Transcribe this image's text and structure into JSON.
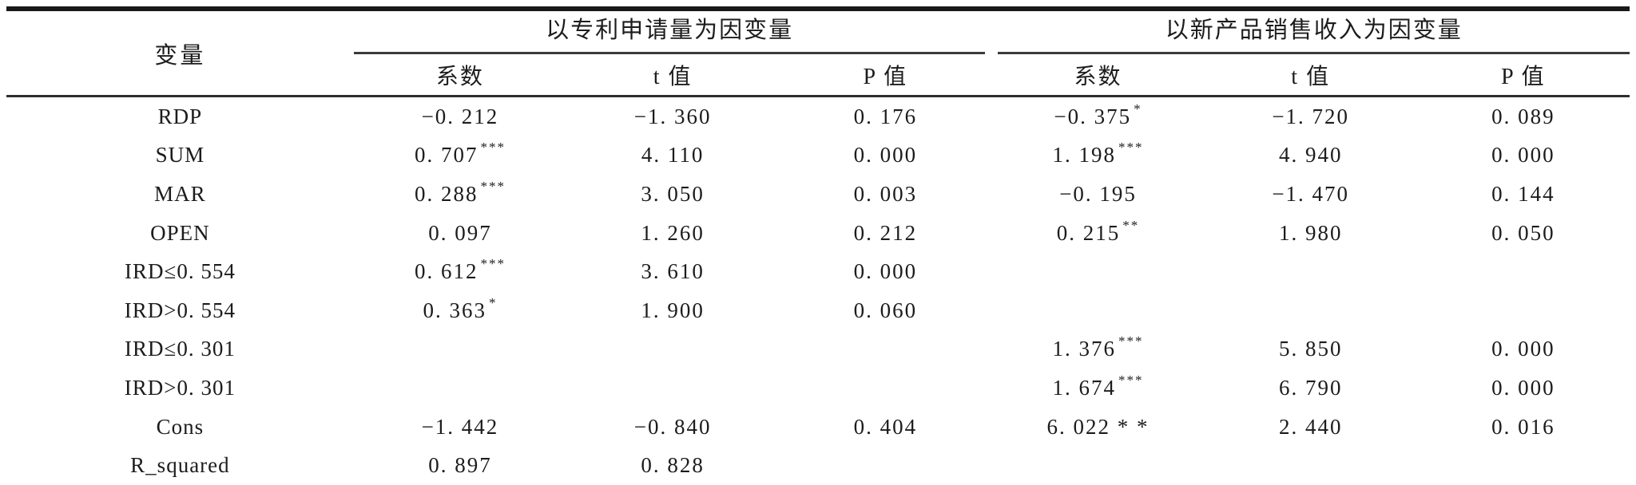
{
  "table": {
    "variable_header": "变量",
    "groups": [
      {
        "title": "以专利申请量为因变量",
        "columns": [
          "系数",
          "t 值",
          "P 值"
        ]
      },
      {
        "title": "以新产品销售收入为因变量",
        "columns": [
          "系数",
          "t 值",
          "P 值"
        ]
      }
    ],
    "rows": [
      {
        "variable": "RDP",
        "cells": [
          {
            "v": "−0. 212",
            "s": ""
          },
          {
            "v": "−1. 360",
            "s": ""
          },
          {
            "v": "0. 176",
            "s": ""
          },
          {
            "v": "−0. 375",
            "s": "*"
          },
          {
            "v": "−1. 720",
            "s": ""
          },
          {
            "v": "0. 089",
            "s": ""
          }
        ]
      },
      {
        "variable": "SUM",
        "cells": [
          {
            "v": "0. 707",
            "s": "***"
          },
          {
            "v": "4. 110",
            "s": ""
          },
          {
            "v": "0. 000",
            "s": ""
          },
          {
            "v": "1. 198",
            "s": "***"
          },
          {
            "v": "4. 940",
            "s": ""
          },
          {
            "v": "0. 000",
            "s": ""
          }
        ]
      },
      {
        "variable": "MAR",
        "cells": [
          {
            "v": "0. 288",
            "s": "***"
          },
          {
            "v": "3. 050",
            "s": ""
          },
          {
            "v": "0. 003",
            "s": ""
          },
          {
            "v": "−0. 195",
            "s": ""
          },
          {
            "v": "−1. 470",
            "s": ""
          },
          {
            "v": "0. 144",
            "s": ""
          }
        ]
      },
      {
        "variable": "OPEN",
        "cells": [
          {
            "v": "0. 097",
            "s": ""
          },
          {
            "v": "1. 260",
            "s": ""
          },
          {
            "v": "0. 212",
            "s": ""
          },
          {
            "v": "0. 215",
            "s": "**"
          },
          {
            "v": "1. 980",
            "s": ""
          },
          {
            "v": "0. 050",
            "s": ""
          }
        ]
      },
      {
        "variable": "IRD≤0. 554",
        "cells": [
          {
            "v": "0. 612",
            "s": "***"
          },
          {
            "v": "3. 610",
            "s": ""
          },
          {
            "v": "0. 000",
            "s": ""
          },
          {
            "v": "",
            "s": ""
          },
          {
            "v": "",
            "s": ""
          },
          {
            "v": "",
            "s": ""
          }
        ]
      },
      {
        "variable": "IRD>0. 554",
        "cells": [
          {
            "v": "0. 363",
            "s": "*"
          },
          {
            "v": "1. 900",
            "s": ""
          },
          {
            "v": "0. 060",
            "s": ""
          },
          {
            "v": "",
            "s": ""
          },
          {
            "v": "",
            "s": ""
          },
          {
            "v": "",
            "s": ""
          }
        ]
      },
      {
        "variable": "IRD≤0. 301",
        "cells": [
          {
            "v": "",
            "s": ""
          },
          {
            "v": "",
            "s": ""
          },
          {
            "v": "",
            "s": ""
          },
          {
            "v": "1. 376",
            "s": "***"
          },
          {
            "v": "5. 850",
            "s": ""
          },
          {
            "v": "0. 000",
            "s": ""
          }
        ]
      },
      {
        "variable": "IRD>0. 301",
        "cells": [
          {
            "v": "",
            "s": ""
          },
          {
            "v": "",
            "s": ""
          },
          {
            "v": "",
            "s": ""
          },
          {
            "v": "1. 674",
            "s": "***"
          },
          {
            "v": "6. 790",
            "s": ""
          },
          {
            "v": "0. 000",
            "s": ""
          }
        ]
      },
      {
        "variable": "Cons",
        "cells": [
          {
            "v": "−1. 442",
            "s": ""
          },
          {
            "v": "−0. 840",
            "s": ""
          },
          {
            "v": "0. 404",
            "s": ""
          },
          {
            "v": "6. 022 * *",
            "s": ""
          },
          {
            "v": "2. 440",
            "s": ""
          },
          {
            "v": "0. 016",
            "s": ""
          }
        ]
      },
      {
        "variable": "R_squared",
        "cells": [
          {
            "v": "0. 897",
            "s": ""
          },
          {
            "v": "0. 828",
            "s": ""
          },
          {
            "v": "",
            "s": ""
          },
          {
            "v": "",
            "s": ""
          },
          {
            "v": "",
            "s": ""
          },
          {
            "v": "",
            "s": ""
          }
        ]
      }
    ]
  }
}
